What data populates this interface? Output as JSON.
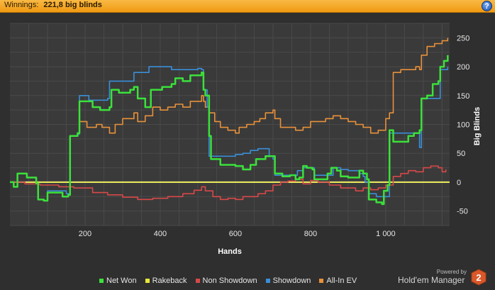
{
  "header": {
    "label": "Winnings:",
    "value": "221,8 big blinds",
    "help_icon": "help-icon"
  },
  "footer": {
    "powered_by": "Powered by",
    "brand": "Hold'em Manager",
    "brand_badge": "2"
  },
  "chart_data": {
    "type": "line",
    "title": "",
    "xlabel": "Hands",
    "ylabel": "Big Blinds",
    "xlim": [
      0,
      1170
    ],
    "ylim": [
      -75,
      275
    ],
    "x_ticks": [
      200,
      400,
      600,
      800,
      1000
    ],
    "x_tick_labels": [
      "200",
      "400",
      "600",
      "800",
      "1 000"
    ],
    "y_ticks": [
      -50,
      0,
      50,
      100,
      150,
      200,
      250
    ],
    "y_tick_labels": [
      "-50",
      "0",
      "50",
      "100",
      "150",
      "200",
      "250"
    ],
    "grid": true,
    "zero_line": true,
    "y_axis_side": "right",
    "legend_position": "bottom",
    "series": [
      {
        "name": "Net Won",
        "color": "#3be13b",
        "points": [
          [
            0,
            0
          ],
          [
            10,
            -8
          ],
          [
            20,
            15
          ],
          [
            45,
            8
          ],
          [
            70,
            -2
          ],
          [
            75,
            -30
          ],
          [
            90,
            -32
          ],
          [
            100,
            -18
          ],
          [
            140,
            -25
          ],
          [
            155,
            -22
          ],
          [
            160,
            80
          ],
          [
            180,
            85
          ],
          [
            185,
            140
          ],
          [
            220,
            130
          ],
          [
            240,
            125
          ],
          [
            265,
            130
          ],
          [
            270,
            160
          ],
          [
            290,
            155
          ],
          [
            320,
            160
          ],
          [
            330,
            165
          ],
          [
            340,
            145
          ],
          [
            360,
            130
          ],
          [
            375,
            160
          ],
          [
            395,
            160
          ],
          [
            405,
            165
          ],
          [
            430,
            170
          ],
          [
            440,
            180
          ],
          [
            460,
            175
          ],
          [
            480,
            185
          ],
          [
            500,
            185
          ],
          [
            510,
            190
          ],
          [
            515,
            160
          ],
          [
            520,
            150
          ],
          [
            530,
            80
          ],
          [
            535,
            40
          ],
          [
            560,
            30
          ],
          [
            600,
            28
          ],
          [
            620,
            22
          ],
          [
            640,
            30
          ],
          [
            655,
            40
          ],
          [
            680,
            45
          ],
          [
            700,
            45
          ],
          [
            705,
            15
          ],
          [
            725,
            10
          ],
          [
            745,
            12
          ],
          [
            760,
            5
          ],
          [
            770,
            8
          ],
          [
            780,
            28
          ],
          [
            790,
            25
          ],
          [
            805,
            22
          ],
          [
            810,
            5
          ],
          [
            830,
            5
          ],
          [
            845,
            15
          ],
          [
            855,
            25
          ],
          [
            870,
            20
          ],
          [
            880,
            10
          ],
          [
            900,
            8
          ],
          [
            930,
            20
          ],
          [
            940,
            15
          ],
          [
            950,
            5
          ],
          [
            955,
            -30
          ],
          [
            975,
            -35
          ],
          [
            990,
            -38
          ],
          [
            995,
            -15
          ],
          [
            1005,
            -5
          ],
          [
            1010,
            90
          ],
          [
            1020,
            70
          ],
          [
            1060,
            80
          ],
          [
            1075,
            85
          ],
          [
            1090,
            90
          ],
          [
            1095,
            145
          ],
          [
            1110,
            150
          ],
          [
            1125,
            170
          ],
          [
            1140,
            175
          ],
          [
            1145,
            200
          ],
          [
            1155,
            210
          ],
          [
            1165,
            220
          ]
        ]
      },
      {
        "name": "Rakeback",
        "color": "#e8e83a",
        "points": [
          [
            0,
            0
          ],
          [
            1170,
            0
          ]
        ]
      },
      {
        "name": "Non Showdown",
        "color": "#d84848",
        "points": [
          [
            0,
            0
          ],
          [
            40,
            -3
          ],
          [
            80,
            -5
          ],
          [
            130,
            -8
          ],
          [
            170,
            -10
          ],
          [
            220,
            -18
          ],
          [
            260,
            -22
          ],
          [
            300,
            -26
          ],
          [
            340,
            -30
          ],
          [
            380,
            -28
          ],
          [
            420,
            -25
          ],
          [
            460,
            -20
          ],
          [
            490,
            -14
          ],
          [
            510,
            -8
          ],
          [
            520,
            -15
          ],
          [
            540,
            -25
          ],
          [
            560,
            -30
          ],
          [
            580,
            -28
          ],
          [
            600,
            -30
          ],
          [
            620,
            -25
          ],
          [
            640,
            -25
          ],
          [
            660,
            -20
          ],
          [
            680,
            -15
          ],
          [
            700,
            -5
          ],
          [
            720,
            0
          ],
          [
            740,
            2
          ],
          [
            760,
            5
          ],
          [
            780,
            -3
          ],
          [
            800,
            3
          ],
          [
            820,
            0
          ],
          [
            850,
            -5
          ],
          [
            880,
            -10
          ],
          [
            900,
            -10
          ],
          [
            920,
            -15
          ],
          [
            940,
            -10
          ],
          [
            960,
            -13
          ],
          [
            980,
            -10
          ],
          [
            1000,
            -5
          ],
          [
            1020,
            10
          ],
          [
            1040,
            15
          ],
          [
            1060,
            20
          ],
          [
            1080,
            18
          ],
          [
            1100,
            25
          ],
          [
            1120,
            28
          ],
          [
            1140,
            25
          ],
          [
            1150,
            18
          ],
          [
            1160,
            22
          ]
        ]
      },
      {
        "name": "Showdown",
        "color": "#3a8fd8",
        "points": [
          [
            0,
            0
          ],
          [
            10,
            -8
          ],
          [
            20,
            15
          ],
          [
            45,
            8
          ],
          [
            70,
            -2
          ],
          [
            75,
            -30
          ],
          [
            90,
            -32
          ],
          [
            100,
            -15
          ],
          [
            150,
            -20
          ],
          [
            160,
            80
          ],
          [
            180,
            83
          ],
          [
            185,
            150
          ],
          [
            210,
            142
          ],
          [
            260,
            145
          ],
          [
            265,
            175
          ],
          [
            320,
            175
          ],
          [
            330,
            190
          ],
          [
            360,
            190
          ],
          [
            370,
            200
          ],
          [
            420,
            200
          ],
          [
            430,
            195
          ],
          [
            480,
            195
          ],
          [
            500,
            197
          ],
          [
            510,
            195
          ],
          [
            515,
            160
          ],
          [
            525,
            130
          ],
          [
            530,
            45
          ],
          [
            560,
            45
          ],
          [
            600,
            48
          ],
          [
            620,
            50
          ],
          [
            640,
            55
          ],
          [
            660,
            58
          ],
          [
            680,
            58
          ],
          [
            690,
            45
          ],
          [
            700,
            40
          ],
          [
            705,
            12
          ],
          [
            730,
            12
          ],
          [
            760,
            12
          ],
          [
            765,
            20
          ],
          [
            780,
            25
          ],
          [
            800,
            25
          ],
          [
            810,
            12
          ],
          [
            850,
            12
          ],
          [
            860,
            25
          ],
          [
            880,
            22
          ],
          [
            900,
            20
          ],
          [
            930,
            15
          ],
          [
            940,
            10
          ],
          [
            945,
            0
          ],
          [
            955,
            -20
          ],
          [
            975,
            -25
          ],
          [
            1000,
            -25
          ],
          [
            1010,
            85
          ],
          [
            1020,
            85
          ],
          [
            1050,
            85
          ],
          [
            1090,
            60
          ],
          [
            1095,
            145
          ],
          [
            1120,
            145
          ],
          [
            1140,
            145
          ],
          [
            1145,
            195
          ],
          [
            1155,
            195
          ],
          [
            1165,
            200
          ]
        ]
      },
      {
        "name": "All-In EV",
        "color": "#e8913a",
        "points": [
          [
            0,
            0
          ],
          [
            10,
            -8
          ],
          [
            20,
            15
          ],
          [
            45,
            8
          ],
          [
            70,
            -2
          ],
          [
            75,
            -30
          ],
          [
            90,
            -32
          ],
          [
            100,
            -18
          ],
          [
            140,
            -25
          ],
          [
            155,
            -22
          ],
          [
            160,
            80
          ],
          [
            180,
            85
          ],
          [
            185,
            105
          ],
          [
            205,
            95
          ],
          [
            230,
            100
          ],
          [
            245,
            95
          ],
          [
            265,
            85
          ],
          [
            280,
            100
          ],
          [
            300,
            110
          ],
          [
            330,
            120
          ],
          [
            340,
            105
          ],
          [
            360,
            115
          ],
          [
            380,
            130
          ],
          [
            400,
            125
          ],
          [
            420,
            130
          ],
          [
            440,
            135
          ],
          [
            460,
            130
          ],
          [
            480,
            140
          ],
          [
            500,
            140
          ],
          [
            510,
            150
          ],
          [
            515,
            140
          ],
          [
            520,
            130
          ],
          [
            530,
            120
          ],
          [
            545,
            105
          ],
          [
            560,
            95
          ],
          [
            580,
            90
          ],
          [
            600,
            85
          ],
          [
            610,
            95
          ],
          [
            630,
            100
          ],
          [
            650,
            105
          ],
          [
            665,
            110
          ],
          [
            680,
            120
          ],
          [
            700,
            125
          ],
          [
            705,
            110
          ],
          [
            720,
            95
          ],
          [
            740,
            95
          ],
          [
            760,
            90
          ],
          [
            780,
            95
          ],
          [
            800,
            105
          ],
          [
            820,
            105
          ],
          [
            840,
            110
          ],
          [
            860,
            115
          ],
          [
            880,
            110
          ],
          [
            900,
            105
          ],
          [
            920,
            100
          ],
          [
            940,
            95
          ],
          [
            960,
            85
          ],
          [
            980,
            90
          ],
          [
            1000,
            110
          ],
          [
            1010,
            120
          ],
          [
            1020,
            190
          ],
          [
            1040,
            195
          ],
          [
            1060,
            195
          ],
          [
            1080,
            200
          ],
          [
            1090,
            195
          ],
          [
            1095,
            220
          ],
          [
            1110,
            235
          ],
          [
            1130,
            240
          ],
          [
            1150,
            245
          ],
          [
            1165,
            250
          ]
        ]
      }
    ]
  }
}
